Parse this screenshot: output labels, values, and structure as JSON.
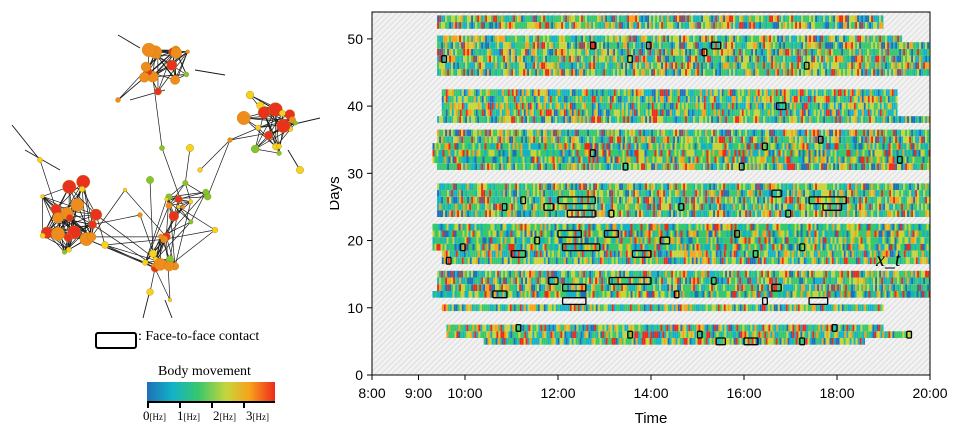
{
  "legend": {
    "contact_label": ": Face-to-face contact",
    "body_movement_title": "Body movement",
    "scale": [
      {
        "value": "0",
        "unit": "[Hz]"
      },
      {
        "value": "1",
        "unit": "[Hz]"
      },
      {
        "value": "2",
        "unit": "[Hz]"
      },
      {
        "value": "3",
        "unit": "[Hz]"
      }
    ]
  },
  "colors": {
    "low": "#1e6fb8",
    "mid_low": "#12b3c8",
    "mid": "#37c76e",
    "mid_high": "#c7d53a",
    "high": "#f7a21b",
    "max": "#ee2a1b",
    "node_low": "#7cc832",
    "node_mid": "#f5d21e",
    "node_high": "#f08c1e",
    "node_max": "#e8321e"
  },
  "chart_data": {
    "type": "heatmap",
    "xlabel": "Time",
    "ylabel": "Days",
    "x_ticks": [
      "8:00",
      "9:00",
      "10:00",
      "12:00",
      "14:00",
      "16:00",
      "18:00",
      "20:00"
    ],
    "x_tick_hours": [
      8,
      9,
      10,
      12,
      14,
      16,
      18,
      20
    ],
    "y_ticks": [
      0,
      10,
      20,
      30,
      40,
      50
    ],
    "xlim": [
      8,
      20
    ],
    "ylim": [
      0,
      54
    ],
    "annotation": "x_t",
    "rows": [
      {
        "day": 53,
        "start": 9.4,
        "end": 19.0
      },
      {
        "day": 52,
        "start": 9.4,
        "end": 19.0
      },
      {
        "day": 50,
        "start": 9.4,
        "end": 19.4
      },
      {
        "day": 49,
        "start": 9.4,
        "end": 20.0
      },
      {
        "day": 48,
        "start": 9.4,
        "end": 20.0
      },
      {
        "day": 47,
        "start": 9.4,
        "end": 20.0
      },
      {
        "day": 46,
        "start": 9.4,
        "end": 20.0
      },
      {
        "day": 45,
        "start": 9.4,
        "end": 20.0
      },
      {
        "day": 42,
        "start": 9.5,
        "end": 19.3
      },
      {
        "day": 41,
        "start": 9.5,
        "end": 19.3
      },
      {
        "day": 40,
        "start": 9.5,
        "end": 19.3
      },
      {
        "day": 39,
        "start": 9.5,
        "end": 19.3
      },
      {
        "day": 38,
        "start": 9.4,
        "end": 20.0
      },
      {
        "day": 36,
        "start": 9.4,
        "end": 20.0
      },
      {
        "day": 35,
        "start": 9.4,
        "end": 20.0
      },
      {
        "day": 34,
        "start": 9.3,
        "end": 20.0
      },
      {
        "day": 33,
        "start": 9.3,
        "end": 20.0
      },
      {
        "day": 32,
        "start": 9.3,
        "end": 20.0
      },
      {
        "day": 31,
        "start": 9.4,
        "end": 20.0
      },
      {
        "day": 28,
        "start": 9.4,
        "end": 20.0
      },
      {
        "day": 27,
        "start": 9.4,
        "end": 20.0
      },
      {
        "day": 26,
        "start": 9.4,
        "end": 20.0
      },
      {
        "day": 25,
        "start": 9.4,
        "end": 20.0
      },
      {
        "day": 24,
        "start": 9.4,
        "end": 20.0
      },
      {
        "day": 22,
        "start": 9.3,
        "end": 20.0
      },
      {
        "day": 21,
        "start": 9.3,
        "end": 20.0
      },
      {
        "day": 20,
        "start": 9.3,
        "end": 20.0
      },
      {
        "day": 19,
        "start": 9.3,
        "end": 20.0
      },
      {
        "day": 18,
        "start": 9.5,
        "end": 20.0
      },
      {
        "day": 17,
        "start": 9.5,
        "end": 20.0
      },
      {
        "day": 15,
        "start": 9.4,
        "end": 20.0
      },
      {
        "day": 14,
        "start": 9.4,
        "end": 20.0
      },
      {
        "day": 13,
        "start": 9.4,
        "end": 20.0
      },
      {
        "day": 12,
        "start": 9.3,
        "end": 20.0
      },
      {
        "day": 10,
        "start": 9.5,
        "end": 19.0
      },
      {
        "day": 7,
        "start": 9.6,
        "end": 19.0
      },
      {
        "day": 6,
        "start": 9.6,
        "end": 19.6
      },
      {
        "day": 5,
        "start": 10.4,
        "end": 18.6
      }
    ],
    "contacts": [
      {
        "day": 49,
        "start": 13.9,
        "end": 14.0
      },
      {
        "day": 49,
        "start": 15.3,
        "end": 15.5
      },
      {
        "day": 49,
        "start": 12.7,
        "end": 12.8
      },
      {
        "day": 48,
        "start": 15.1,
        "end": 15.2
      },
      {
        "day": 47,
        "start": 13.5,
        "end": 13.6
      },
      {
        "day": 47,
        "start": 9.5,
        "end": 9.6
      },
      {
        "day": 46,
        "start": 17.3,
        "end": 17.4
      },
      {
        "day": 40,
        "start": 16.7,
        "end": 16.9
      },
      {
        "day": 35,
        "start": 17.6,
        "end": 17.7
      },
      {
        "day": 34,
        "start": 16.4,
        "end": 16.5
      },
      {
        "day": 33,
        "start": 12.7,
        "end": 12.8
      },
      {
        "day": 32,
        "start": 19.3,
        "end": 19.4
      },
      {
        "day": 31,
        "start": 13.4,
        "end": 13.5
      },
      {
        "day": 31,
        "start": 15.9,
        "end": 16.0
      },
      {
        "day": 27,
        "start": 16.6,
        "end": 16.8
      },
      {
        "day": 26,
        "start": 11.2,
        "end": 11.3
      },
      {
        "day": 26,
        "start": 12.0,
        "end": 12.8
      },
      {
        "day": 26,
        "start": 17.4,
        "end": 18.2
      },
      {
        "day": 25,
        "start": 10.8,
        "end": 10.9
      },
      {
        "day": 25,
        "start": 11.7,
        "end": 11.9
      },
      {
        "day": 25,
        "start": 14.6,
        "end": 14.7
      },
      {
        "day": 25,
        "start": 17.7,
        "end": 18.1
      },
      {
        "day": 24,
        "start": 13.1,
        "end": 13.2
      },
      {
        "day": 24,
        "start": 12.2,
        "end": 12.8
      },
      {
        "day": 24,
        "start": 16.9,
        "end": 17.0
      },
      {
        "day": 21,
        "start": 12.0,
        "end": 12.5
      },
      {
        "day": 21,
        "start": 13.0,
        "end": 13.3
      },
      {
        "day": 21,
        "start": 15.8,
        "end": 15.9
      },
      {
        "day": 20,
        "start": 11.5,
        "end": 11.6
      },
      {
        "day": 20,
        "start": 14.2,
        "end": 14.4
      },
      {
        "day": 19,
        "start": 12.1,
        "end": 12.9
      },
      {
        "day": 19,
        "start": 9.9,
        "end": 10.0
      },
      {
        "day": 19,
        "start": 17.2,
        "end": 17.3
      },
      {
        "day": 18,
        "start": 11.0,
        "end": 11.3
      },
      {
        "day": 18,
        "start": 13.6,
        "end": 14.0
      },
      {
        "day": 18,
        "start": 16.2,
        "end": 16.3
      },
      {
        "day": 17,
        "start": 9.6,
        "end": 9.7
      },
      {
        "day": 14,
        "start": 11.8,
        "end": 12.0
      },
      {
        "day": 14,
        "start": 13.1,
        "end": 14.0
      },
      {
        "day": 14,
        "start": 15.3,
        "end": 15.4
      },
      {
        "day": 13,
        "start": 12.1,
        "end": 12.6
      },
      {
        "day": 13,
        "start": 16.6,
        "end": 16.8
      },
      {
        "day": 12,
        "start": 10.6,
        "end": 10.9
      },
      {
        "day": 12,
        "start": 14.5,
        "end": 14.6
      },
      {
        "day": 11,
        "start": 12.1,
        "end": 12.6
      },
      {
        "day": 11,
        "start": 17.4,
        "end": 17.8
      },
      {
        "day": 11,
        "start": 16.4,
        "end": 16.5
      },
      {
        "day": 7,
        "start": 11.1,
        "end": 11.2
      },
      {
        "day": 7,
        "start": 17.9,
        "end": 18.0
      },
      {
        "day": 6,
        "start": 13.5,
        "end": 13.6
      },
      {
        "day": 6,
        "start": 15.0,
        "end": 15.1
      },
      {
        "day": 6,
        "start": 19.5,
        "end": 19.6
      },
      {
        "day": 5,
        "start": 15.4,
        "end": 15.6
      },
      {
        "day": 5,
        "start": 16.0,
        "end": 16.3
      },
      {
        "day": 5,
        "start": 17.2,
        "end": 17.3
      }
    ]
  }
}
